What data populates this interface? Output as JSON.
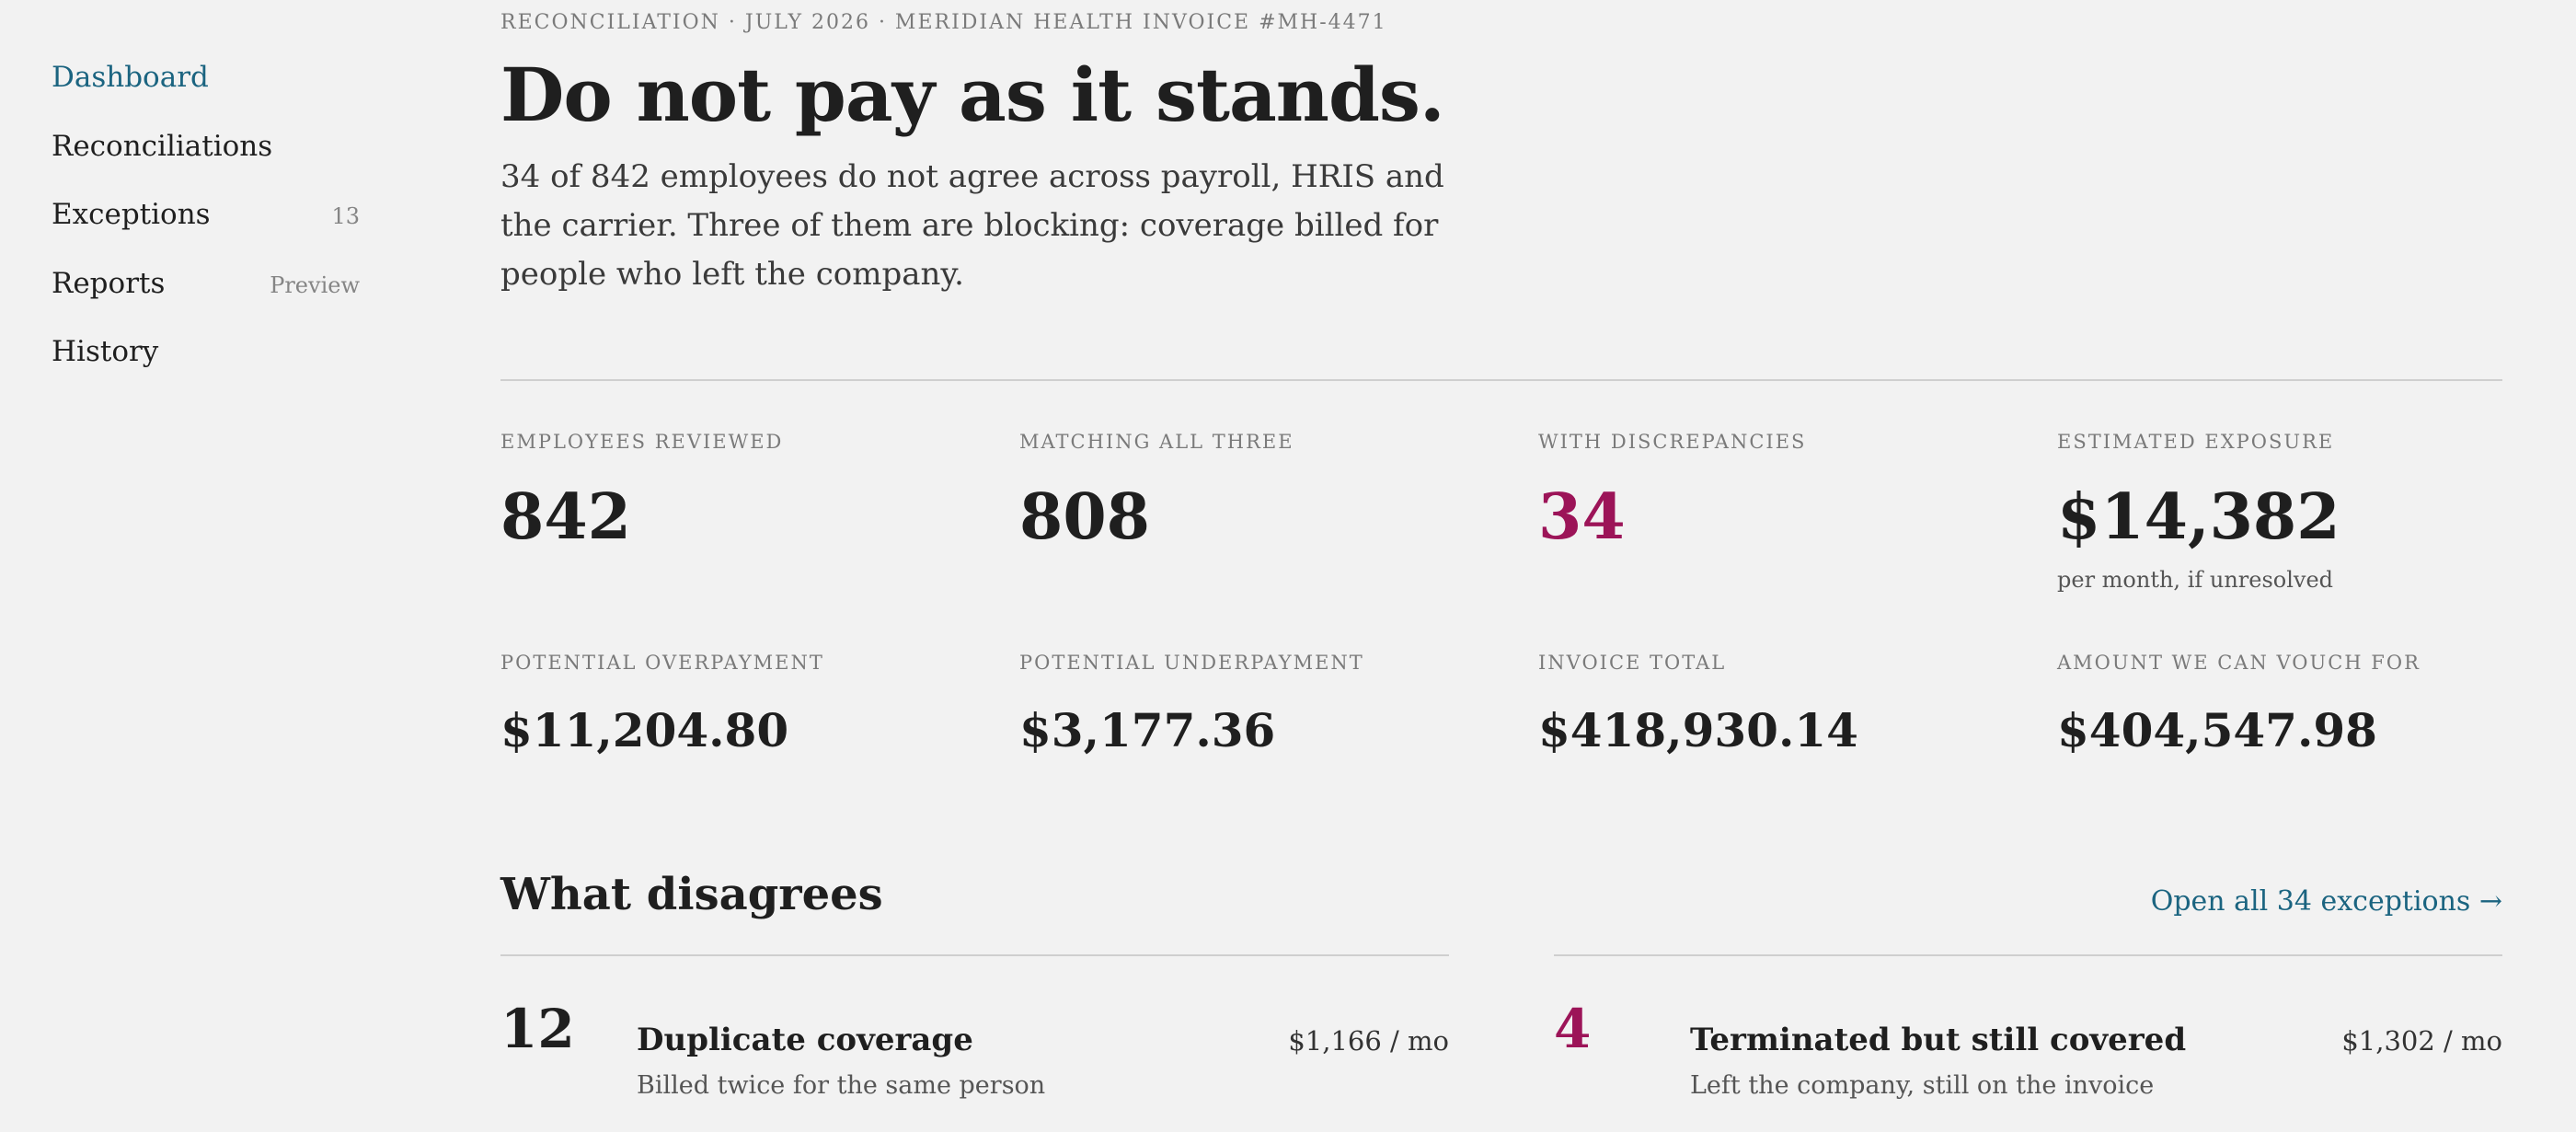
{
  "sidebar": {
    "items": [
      {
        "label": "Dashboard",
        "meta": ""
      },
      {
        "label": "Reconciliations",
        "meta": ""
      },
      {
        "label": "Exceptions",
        "meta": "13"
      },
      {
        "label": "Reports",
        "meta": "Preview"
      },
      {
        "label": "History",
        "meta": ""
      }
    ],
    "active": "Dashboard"
  },
  "header": {
    "breadcrumb": "RECONCILIATION · JULY 2026 · MERIDIAN HEALTH INVOICE #MH-4471",
    "title": "Do not pay as it stands.",
    "summary": "34 of 842 employees do not agree across payroll, HRIS and the carrier. Three of them are blocking: coverage billed for people who left the company."
  },
  "stats": {
    "reviewed": {
      "label": "EMPLOYEES REVIEWED",
      "value": "842"
    },
    "matching": {
      "label": "MATCHING ALL THREE",
      "value": "808"
    },
    "discrepancies": {
      "label": "WITH DISCREPANCIES",
      "value": "34"
    },
    "exposure": {
      "label": "ESTIMATED EXPOSURE",
      "value": "$14,382",
      "note": "per month, if unresolved"
    },
    "overpayment": {
      "label": "POTENTIAL OVERPAYMENT",
      "value": "$11,204.80"
    },
    "underpayment": {
      "label": "POTENTIAL UNDERPAYMENT",
      "value": "$3,177.36"
    },
    "invoice_total": {
      "label": "INVOICE TOTAL",
      "value": "$418,930.14"
    },
    "vouch": {
      "label": "AMOUNT WE CAN VOUCH FOR",
      "value": "$404,547.98"
    }
  },
  "disagrees": {
    "title": "What disagrees",
    "open_link": "Open all 34 exceptions →",
    "rows": [
      {
        "count": "12",
        "title": "Duplicate coverage",
        "subtitle": "Billed twice for the same person",
        "amount": "$1,166 / mo"
      },
      {
        "count": "4",
        "title": "Terminated but still covered",
        "subtitle": "Left the company, still on the invoice",
        "amount": "$1,302 / mo"
      }
    ]
  },
  "colors": {
    "accent": "#1b6480",
    "alert": "#9c1458",
    "background": "#f2f2f2"
  }
}
